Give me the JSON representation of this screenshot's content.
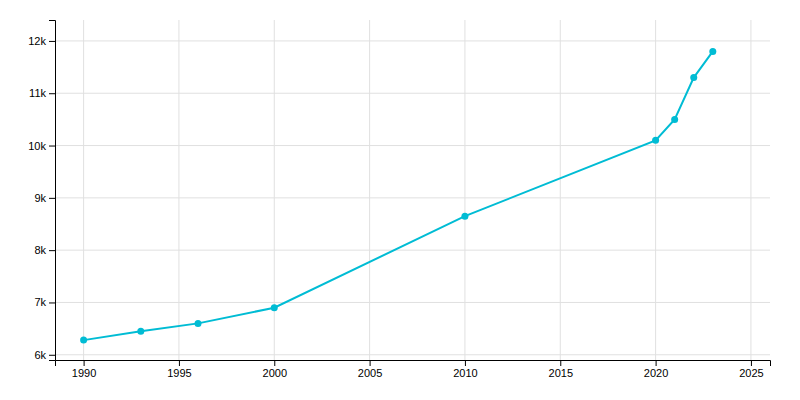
{
  "chart_data": {
    "type": "line",
    "x": [
      1990,
      1993,
      1996,
      2000,
      2010,
      2020,
      2021,
      2022,
      2023
    ],
    "values": [
      6280,
      6450,
      6600,
      6900,
      8650,
      10100,
      10500,
      11300,
      11800
    ],
    "color": "#00bcd4",
    "marker": "circle",
    "xlim": [
      1988.5,
      2026
    ],
    "ylim": [
      5900,
      12400
    ],
    "xticks": [
      1990,
      1995,
      2000,
      2005,
      2010,
      2015,
      2020,
      2025
    ],
    "yticks": [
      {
        "value": 6000,
        "label": "6k"
      },
      {
        "value": 7000,
        "label": "7k"
      },
      {
        "value": 8000,
        "label": "8k"
      },
      {
        "value": 9000,
        "label": "9k"
      },
      {
        "value": 10000,
        "label": "10k"
      },
      {
        "value": 11000,
        "label": "11k"
      },
      {
        "value": 12000,
        "label": "12k"
      }
    ],
    "grid": true
  }
}
